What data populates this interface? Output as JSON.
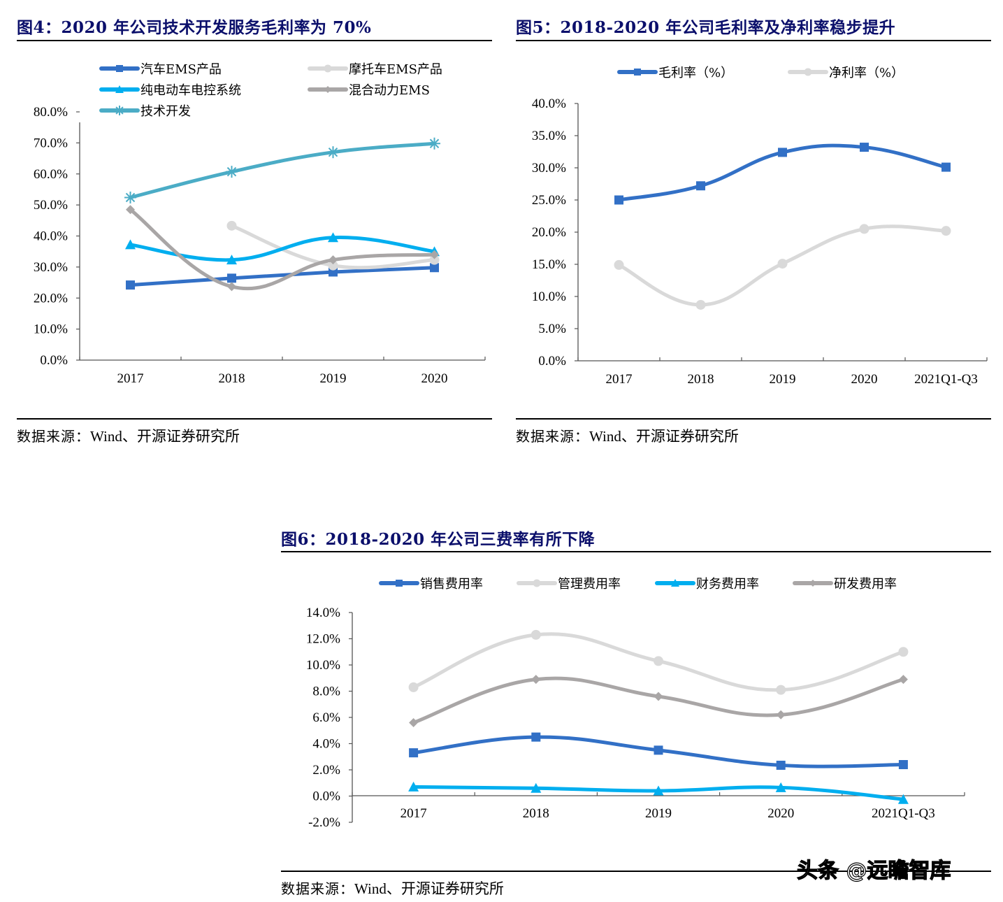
{
  "figures": [
    {
      "title": "图4：2020 年公司技术开发服务毛利率为 70%",
      "source_prefix": "数据来源：",
      "source_text": "Wind、开源证券研究所"
    },
    {
      "title": "图5：2018-2020 年公司毛利率及净利率稳步提升",
      "source_prefix": "数据来源：",
      "source_text": "Wind、开源证券研究所"
    },
    {
      "title": "图6：2018-2020 年公司三费率有所下降",
      "source_prefix": "数据来源：",
      "source_text": "Wind、开源证券研究所"
    }
  ],
  "watermark": "头条 @远瞻智库",
  "chart_data": [
    {
      "type": "line",
      "title": "2020 年公司技术开发服务毛利率为 70%",
      "categories": [
        "2017",
        "2018",
        "2019",
        "2020"
      ],
      "ylim": [
        0,
        80
      ],
      "yticks": [
        "0.0%",
        "10.0%",
        "20.0%",
        "30.0%",
        "40.0%",
        "50.0%",
        "60.0%",
        "70.0%",
        "80.0%"
      ],
      "ytick_values": [
        0,
        10,
        20,
        30,
        40,
        50,
        60,
        70,
        80
      ],
      "legend_position": "top",
      "series": [
        {
          "name": "汽车EMS产品",
          "color": "#3270c6",
          "marker": "square",
          "smooth": false,
          "values": [
            24.2,
            26.4,
            28.4,
            29.8
          ]
        },
        {
          "name": "摩托车EMS产品",
          "color": "#d9d9d9",
          "marker": "circle",
          "smooth": true,
          "values": [
            null,
            43.3,
            30.5,
            32.3
          ]
        },
        {
          "name": "纯电动车电控系统",
          "color": "#00aeef",
          "marker": "triangle",
          "smooth": true,
          "values": [
            37.2,
            32.3,
            39.5,
            35.0
          ]
        },
        {
          "name": "混合动力EMS",
          "color": "#a9a6a6",
          "marker": "diamond",
          "smooth": true,
          "values": [
            48.5,
            23.7,
            32.3,
            34.0
          ]
        },
        {
          "name": "技术开发",
          "color": "#4bacc6",
          "marker": "star",
          "smooth": true,
          "values": [
            52.4,
            60.7,
            67.0,
            69.8
          ]
        }
      ]
    },
    {
      "type": "line",
      "title": "2018-2020 年公司毛利率及净利率稳步提升",
      "categories": [
        "2017",
        "2018",
        "2019",
        "2020",
        "2021Q1-Q3"
      ],
      "ylim": [
        0,
        40
      ],
      "yticks": [
        "0.0%",
        "5.0%",
        "10.0%",
        "15.0%",
        "20.0%",
        "25.0%",
        "30.0%",
        "35.0%",
        "40.0%"
      ],
      "ytick_values": [
        0,
        5,
        10,
        15,
        20,
        25,
        30,
        35,
        40
      ],
      "legend_position": "top",
      "series": [
        {
          "name": "毛利率（%）",
          "color": "#3270c6",
          "marker": "square",
          "smooth": true,
          "values": [
            25.0,
            27.2,
            32.4,
            33.2,
            30.1
          ]
        },
        {
          "name": "净利率（%）",
          "color": "#d9d9d9",
          "marker": "circle",
          "smooth": true,
          "values": [
            14.9,
            8.7,
            15.1,
            20.5,
            20.2
          ]
        }
      ]
    },
    {
      "type": "line",
      "title": "2018-2020 年公司三费率有所下降",
      "categories": [
        "2017",
        "2018",
        "2019",
        "2020",
        "2021Q1-Q3"
      ],
      "ylim": [
        -2,
        14
      ],
      "yticks": [
        "-2.0%",
        "0.0%",
        "2.0%",
        "4.0%",
        "6.0%",
        "8.0%",
        "10.0%",
        "12.0%",
        "14.0%"
      ],
      "ytick_values": [
        -2,
        0,
        2,
        4,
        6,
        8,
        10,
        12,
        14
      ],
      "legend_position": "top",
      "series": [
        {
          "name": "销售费用率",
          "color": "#3270c6",
          "marker": "square",
          "smooth": true,
          "values": [
            3.3,
            4.5,
            3.5,
            2.35,
            2.4
          ]
        },
        {
          "name": "管理费用率",
          "color": "#d9d9d9",
          "marker": "circle",
          "smooth": true,
          "values": [
            8.3,
            12.3,
            10.3,
            8.1,
            11.0
          ]
        },
        {
          "name": "财务费用率",
          "color": "#00aeef",
          "marker": "triangle",
          "smooth": true,
          "values": [
            0.7,
            0.6,
            0.4,
            0.65,
            -0.25
          ]
        },
        {
          "name": "研发费用率",
          "color": "#a9a6a6",
          "marker": "diamond",
          "smooth": true,
          "values": [
            5.6,
            8.9,
            7.6,
            6.2,
            8.9
          ]
        }
      ]
    }
  ]
}
